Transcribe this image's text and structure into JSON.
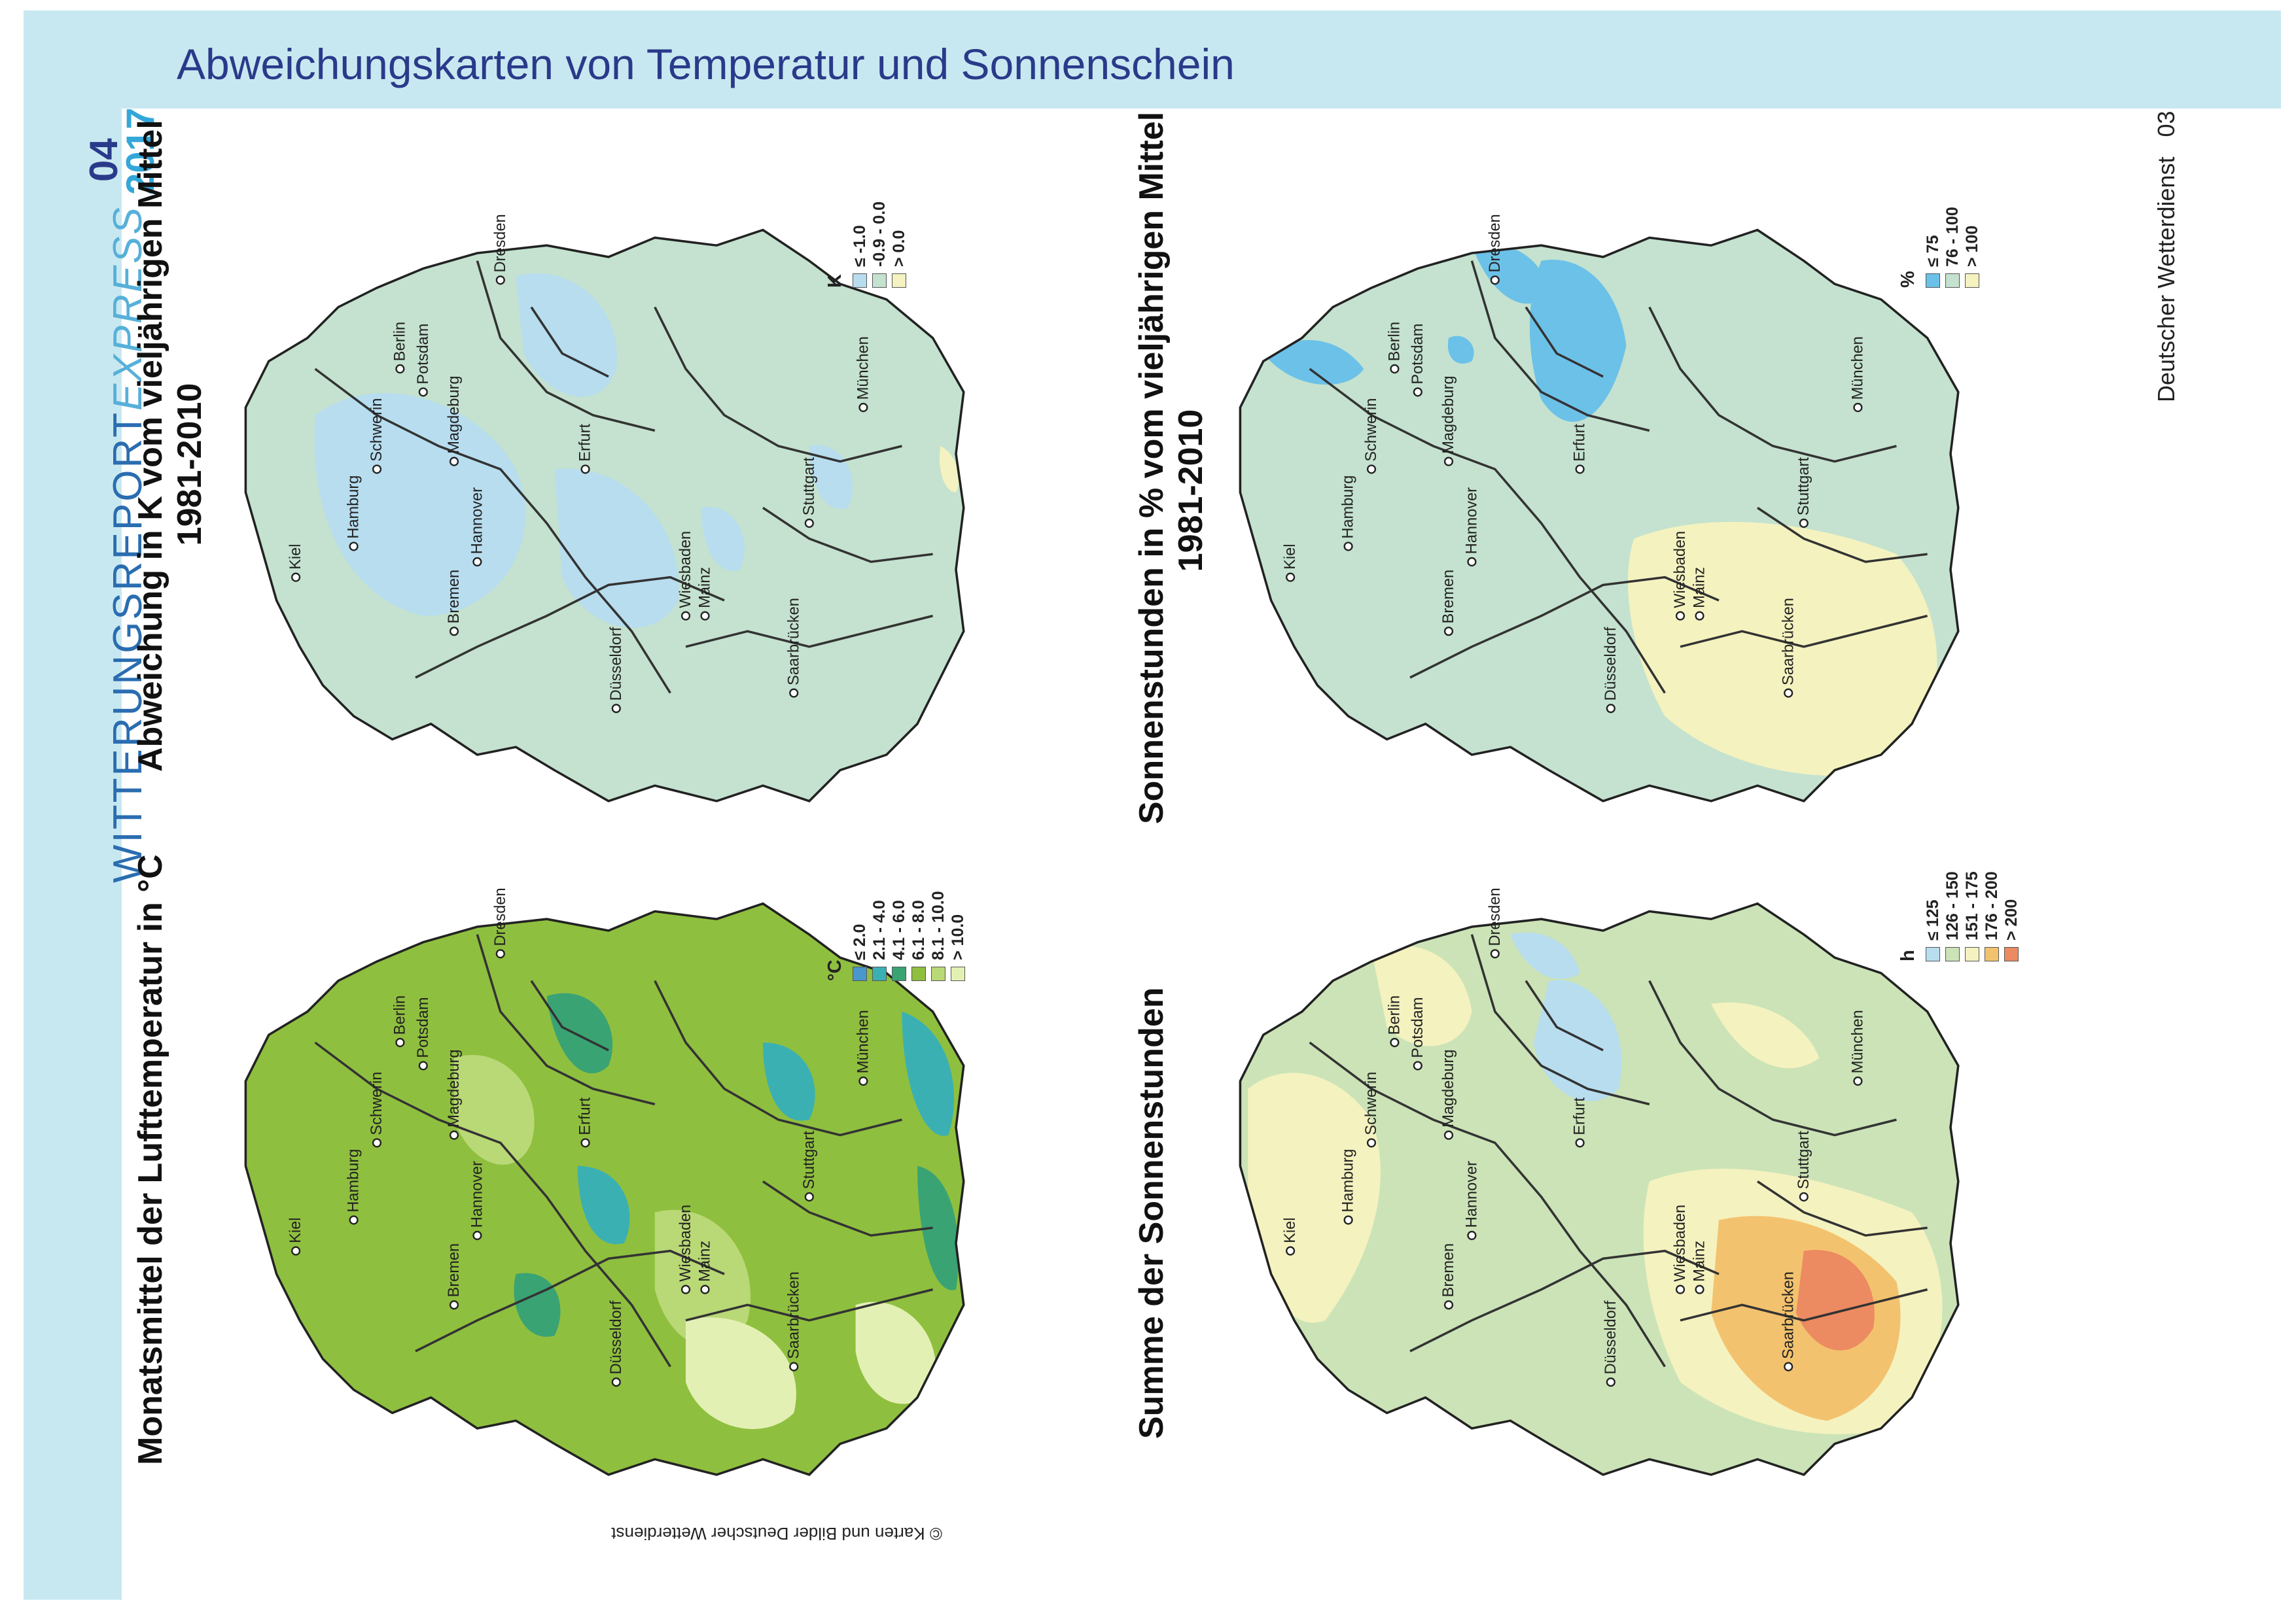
{
  "page_title": "Abweichungskarten von Temperatur und Sonnenschein",
  "brand": {
    "part1": "WITTERUNGSREPORT",
    "part2": "EXPRESS"
  },
  "issue": {
    "number": "04",
    "year": "2017"
  },
  "footer": {
    "publisher": "Deutscher Wetterdienst",
    "page": "03"
  },
  "copyright": "© Karten und Bilder Deutscher Wetterdienst",
  "colors": {
    "band": "#c8e8f1",
    "title": "#2a3a8a",
    "brand": "#2a6db0",
    "brand_accent": "#57b0d9",
    "year": "#33a7d9"
  },
  "cities": [
    "Kiel",
    "Hamburg",
    "Schwerin",
    "Bremen",
    "Berlin",
    "Potsdam",
    "Hannover",
    "Magdeburg",
    "Düsseldorf",
    "Erfurt",
    "Dresden",
    "Wiesbaden",
    "Mainz",
    "Saarbrücken",
    "Stuttgart",
    "München"
  ],
  "maps": [
    {
      "id": "temp-mean",
      "title_lines": [
        "Monatsmittel der Lufttemperatur in °C"
      ],
      "legend": {
        "unit": "°C",
        "items": [
          {
            "label": "≤ 2.0",
            "color": "#4a97cc"
          },
          {
            "label": "2.1 - 4.0",
            "color": "#3ab0b3"
          },
          {
            "label": "4.1 - 6.0",
            "color": "#3aa373"
          },
          {
            "label": "6.1 - 8.0",
            "color": "#8fbf3f"
          },
          {
            "label": "8.1 - 10.0",
            "color": "#b9d876"
          },
          {
            "label": "> 10.0",
            "color": "#e3f0b4"
          }
        ]
      }
    },
    {
      "id": "temp-anomaly",
      "title_lines": [
        "Abweichung in K vom vieljährigen Mittel",
        "1981-2010"
      ],
      "legend": {
        "unit": "K",
        "items": [
          {
            "label": "≤ -1.0",
            "color": "#b7ddef"
          },
          {
            "label": "-0.9 - 0.0",
            "color": "#c4e2cf"
          },
          {
            "label": "> 0.0",
            "color": "#f3f2c0"
          }
        ]
      }
    },
    {
      "id": "sun-sum",
      "title_lines": [
        "Summe der Sonnenstunden"
      ],
      "legend": {
        "unit": "h",
        "items": [
          {
            "label": "≤ 125",
            "color": "#b7ddef"
          },
          {
            "label": "126 - 150",
            "color": "#cbe3b7"
          },
          {
            "label": "151 - 175",
            "color": "#f4f2bf"
          },
          {
            "label": "176 - 200",
            "color": "#f3c26e"
          },
          {
            "label": "> 200",
            "color": "#ec8a61"
          }
        ]
      }
    },
    {
      "id": "sun-anomaly",
      "title_lines": [
        "Sonnenstunden in % vom vieljährigen Mittel",
        "1981-2010"
      ],
      "legend": {
        "unit": "%",
        "items": [
          {
            "label": "≤ 75",
            "color": "#6cc1e8"
          },
          {
            "label": "76 - 100",
            "color": "#c4e2cf"
          },
          {
            "label": "> 100",
            "color": "#f4f2bf"
          }
        ]
      }
    }
  ]
}
